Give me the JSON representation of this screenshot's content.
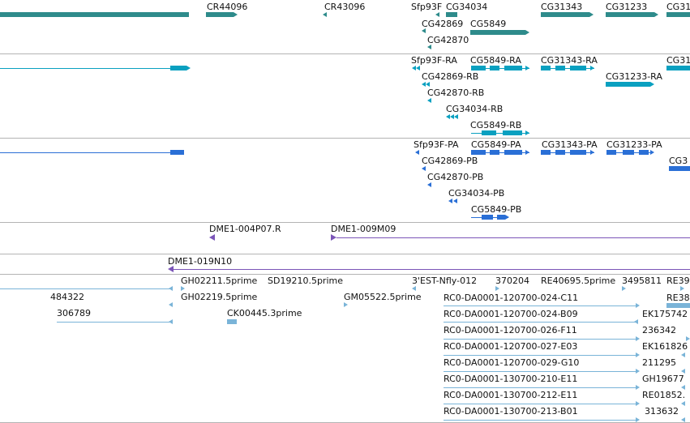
{
  "colors": {
    "gene": "#2e8b8b",
    "transcript": "#0aa0c0",
    "protein": "#2a6fd6",
    "clone": "#7b55b8",
    "est": "#7ab4d8",
    "separator": "#b4b4b4"
  },
  "gene_track": {
    "labels": [
      "CR44096",
      "CR43096",
      "Sfp93F",
      "CG34034",
      "CG42869",
      "CG5849",
      "CG42870",
      "CG31343",
      "CG31233",
      "CG31"
    ]
  },
  "transcript_track": {
    "labels": [
      "Sfp93F-RA",
      "CG5849-RA",
      "CG31343-RA",
      "CG31",
      "CG42869-RB",
      "CG31233-RA",
      "CG42870-RB",
      "CG34034-RB",
      "CG5849-RB"
    ]
  },
  "protein_track": {
    "labels": [
      "Sfp93F-PA",
      "CG5849-PA",
      "CG31343-PA",
      "CG31233-PA",
      "CG42869-PB",
      "CG3",
      "CG42870-PB",
      "CG34034-PB",
      "CG5849-PB"
    ]
  },
  "clone_track": {
    "labels": [
      "DME1-004P07.R",
      "DME1-009M09"
    ]
  },
  "clone_track2": {
    "labels": [
      "DME1-019N10"
    ]
  },
  "est_track": {
    "labels": [
      "GH02211.5prime",
      "SD19210.5prime",
      "3'EST-Nfly-012",
      "370204",
      "RE40695.5prime",
      "3495811",
      "RE39",
      "484322",
      "GH02219.5prime",
      "GM05522.5prime",
      "RC0-DA0001-120700-024-C11",
      "RE38",
      "306789",
      "CK00445.3prime",
      "RC0-DA0001-120700-024-B09",
      "EK175742",
      "RC0-DA0001-120700-026-F11",
      "236342",
      "RC0-DA0001-120700-027-E03",
      "EK161826",
      "RC0-DA0001-120700-029-G10",
      "211295",
      "RC0-DA0001-130700-210-E11",
      "GH19677",
      "RC0-DA0001-130700-212-E11",
      "RE01852.",
      "RC0-DA0001-130700-213-B01",
      "313632"
    ]
  }
}
